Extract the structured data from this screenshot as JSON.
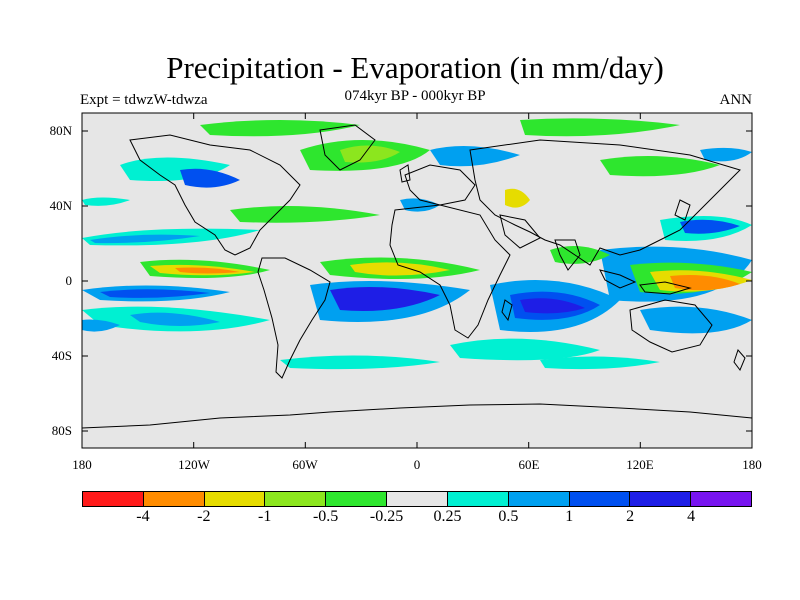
{
  "title": "Precipitation - Evaporation (in mm/day)",
  "subtitle": "074kyr BP - 000kyr BP",
  "left_label": "Expt = tdwzW-tdwza",
  "right_label": "ANN",
  "lat_labels": [
    "80N",
    "40N",
    "0",
    "40S",
    "80S"
  ],
  "lon_labels": [
    "180",
    "120W",
    "60W",
    "0",
    "60E",
    "120E",
    "180"
  ],
  "colorbar": {
    "colors": [
      "#ff1a1a",
      "#ff8c00",
      "#e6dc00",
      "#8ce61e",
      "#2ee62e",
      "#e6e6e6",
      "#00f0d2",
      "#00a0f0",
      "#0050f0",
      "#1e1ee6",
      "#7814f0"
    ],
    "labels": [
      "-4",
      "-2",
      "-1",
      "-0.5",
      "-0.25",
      "0.25",
      "0.5",
      "1",
      "2",
      "4"
    ]
  },
  "map": {
    "background_color": "#e6e6e6",
    "coastline_color": "#000000"
  }
}
